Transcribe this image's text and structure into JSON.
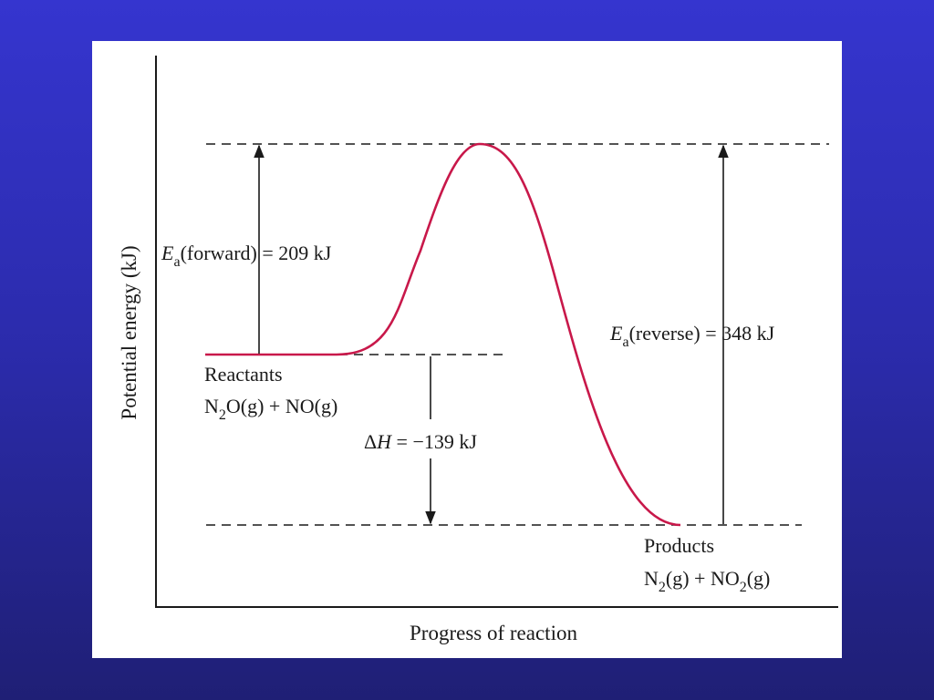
{
  "colors": {
    "background_top": "#3535cf",
    "background_bottom": "#1f1f75",
    "panel": "#ffffff",
    "curve": "#c8184a",
    "ink": "#1a1a1a"
  },
  "axes": {
    "ylabel": "Potential energy (kJ)",
    "xlabel": "Progress of reaction"
  },
  "reactants": {
    "title": "Reactants",
    "f1": "N",
    "s1": "2",
    "f2": "O(g) + NO(g)"
  },
  "products": {
    "title": "Products",
    "f1": "N",
    "s1": "2",
    "f2": "(g) + NO",
    "s2": "2",
    "f3": "(g)"
  },
  "ea_forward": {
    "symbol": "E",
    "sub": "a",
    "text": "(forward) = 209 kJ"
  },
  "ea_reverse": {
    "symbol": "E",
    "sub": "a",
    "text": "(reverse) = 348 kJ"
  },
  "delta_h": {
    "delta": "Δ",
    "symbol": "H",
    "text": " = −139 kJ"
  }
}
